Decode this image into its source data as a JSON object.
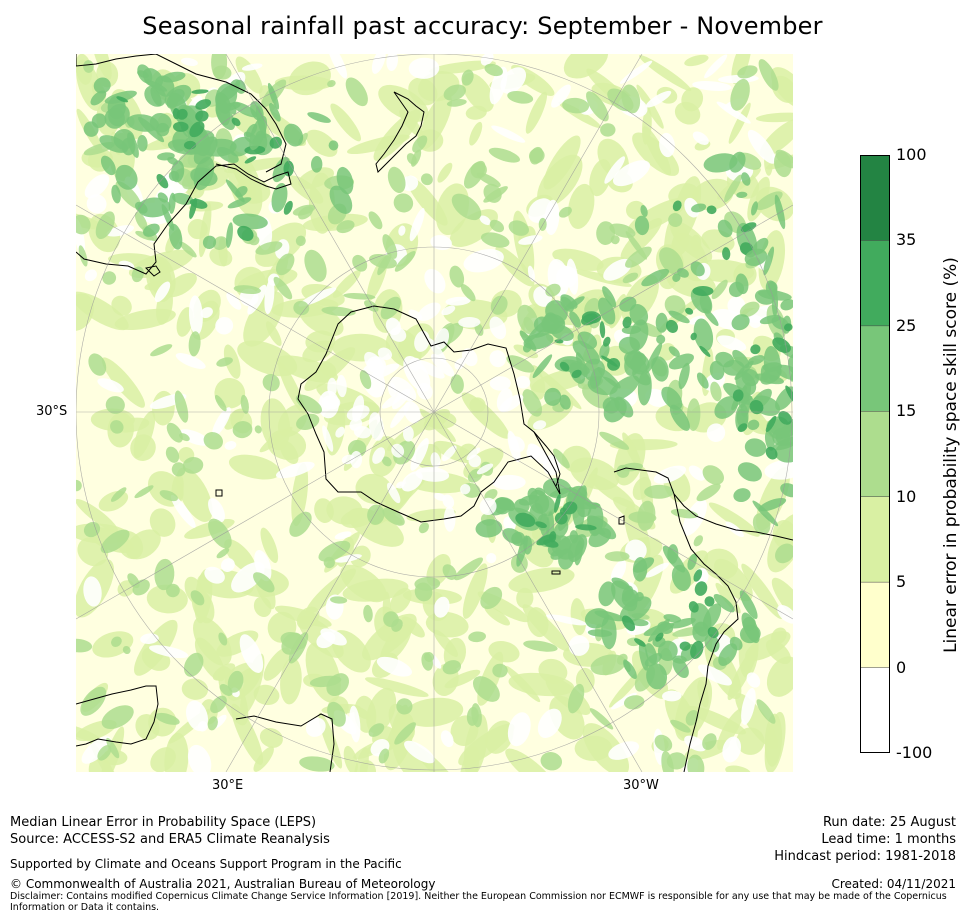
{
  "title": "Seasonal rainfall past accuracy: September - November",
  "map": {
    "lat_label": "30°S",
    "lon_labels": [
      "30°E",
      "30°W"
    ],
    "palette": {
      "ocean_background": "#ffffe0",
      "level_lt0": "#ffffff",
      "level_0_5": "#ffffcc",
      "level_5_10": "#d9f0a3",
      "level_10_15": "#addd8e",
      "level_15_25": "#78c679",
      "level_25_35": "#41ab5d",
      "level_35_100": "#238443",
      "coastline": "#000000",
      "gridline": "#999999"
    }
  },
  "colorbar": {
    "label": "Linear error in probability space skill score (%)",
    "ticks": [
      "100",
      "35",
      "25",
      "15",
      "10",
      "5",
      "0",
      "-100"
    ],
    "colors": [
      "#238443",
      "#41ab5d",
      "#78c679",
      "#addd8e",
      "#d9f0a3",
      "#ffffcc",
      "#ffffff"
    ]
  },
  "footer": {
    "line1": "Median Linear Error in Probability Space (LEPS)",
    "line2": "Source: ACCESS-S2 and ERA5 Climate Reanalysis",
    "support": "Supported by Climate and Oceans Support Program in the Pacific",
    "copyright": "© Commonwealth of Australia 2021, Australian Bureau of Meteorology",
    "disclaimer_1": "Disclaimer: Contains modified Copernicus Climate Change Service Information [2019]. Neither the European Commission nor ECMWF is responsible for any use that may be made of the Copernicus",
    "disclaimer_2": "Information or Data it contains.",
    "run_date": "Run date: 25 August",
    "lead_time": "Lead time: 1 months",
    "hindcast": "Hindcast period: 1981-2018",
    "created": "Created: 04/11/2021"
  }
}
